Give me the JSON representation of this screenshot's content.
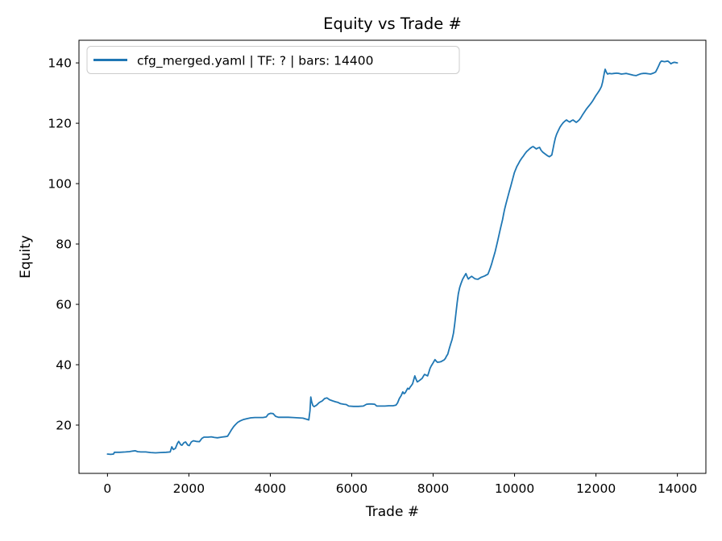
{
  "figure": {
    "title": "Equity vs Trade #",
    "xlabel": "Trade #",
    "ylabel": "Equity"
  },
  "legend": {
    "label": "cfg_merged.yaml | TF: ? | bars: 14400"
  },
  "chart_data": {
    "type": "line",
    "title": "Equity vs Trade #",
    "xlabel": "Trade #",
    "ylabel": "Equity",
    "grid": false,
    "legend_position": "upper left",
    "line_color": "#1f77b4",
    "spine_color": "#000000",
    "xlim": [
      -700,
      14700
    ],
    "ylim": [
      4.0,
      147.5
    ],
    "xticks": [
      0,
      2000,
      4000,
      6000,
      8000,
      10000,
      12000,
      14000
    ],
    "yticks": [
      20,
      40,
      60,
      80,
      100,
      120,
      140
    ],
    "series": [
      {
        "name": "cfg_merged.yaml | TF: ? | bars: 14400",
        "points": [
          [
            0,
            10.4
          ],
          [
            80,
            10.3
          ],
          [
            150,
            10.4
          ],
          [
            170,
            11.0
          ],
          [
            300,
            11.0
          ],
          [
            440,
            11.1
          ],
          [
            540,
            11.2
          ],
          [
            620,
            11.4
          ],
          [
            680,
            11.5
          ],
          [
            740,
            11.2
          ],
          [
            820,
            11.1
          ],
          [
            940,
            11.1
          ],
          [
            1060,
            10.9
          ],
          [
            1180,
            10.8
          ],
          [
            1300,
            10.9
          ],
          [
            1440,
            11.0
          ],
          [
            1540,
            11.1
          ],
          [
            1580,
            12.8
          ],
          [
            1620,
            11.9
          ],
          [
            1670,
            12.3
          ],
          [
            1720,
            14.0
          ],
          [
            1750,
            14.6
          ],
          [
            1800,
            13.5
          ],
          [
            1830,
            13.3
          ],
          [
            1880,
            14.2
          ],
          [
            1920,
            14.4
          ],
          [
            1970,
            13.4
          ],
          [
            2010,
            13.2
          ],
          [
            2060,
            14.4
          ],
          [
            2110,
            14.8
          ],
          [
            2180,
            14.6
          ],
          [
            2260,
            14.5
          ],
          [
            2320,
            15.6
          ],
          [
            2370,
            16.0
          ],
          [
            2470,
            16.0
          ],
          [
            2550,
            16.1
          ],
          [
            2630,
            15.9
          ],
          [
            2700,
            15.8
          ],
          [
            2800,
            16.0
          ],
          [
            2900,
            16.2
          ],
          [
            2950,
            16.3
          ],
          [
            3000,
            17.4
          ],
          [
            3040,
            18.3
          ],
          [
            3100,
            19.5
          ],
          [
            3140,
            20.1
          ],
          [
            3200,
            20.9
          ],
          [
            3260,
            21.4
          ],
          [
            3330,
            21.8
          ],
          [
            3420,
            22.1
          ],
          [
            3520,
            22.4
          ],
          [
            3620,
            22.5
          ],
          [
            3720,
            22.5
          ],
          [
            3820,
            22.5
          ],
          [
            3900,
            22.7
          ],
          [
            3950,
            23.6
          ],
          [
            4010,
            23.9
          ],
          [
            4070,
            23.8
          ],
          [
            4130,
            22.9
          ],
          [
            4200,
            22.6
          ],
          [
            4320,
            22.6
          ],
          [
            4440,
            22.6
          ],
          [
            4560,
            22.5
          ],
          [
            4680,
            22.4
          ],
          [
            4800,
            22.3
          ],
          [
            4900,
            21.9
          ],
          [
            4945,
            21.7
          ],
          [
            4975,
            24.8
          ],
          [
            4995,
            29.3
          ],
          [
            5015,
            27.8
          ],
          [
            5045,
            26.5
          ],
          [
            5075,
            26.1
          ],
          [
            5135,
            26.6
          ],
          [
            5205,
            27.5
          ],
          [
            5275,
            28.0
          ],
          [
            5335,
            28.8
          ],
          [
            5395,
            29.0
          ],
          [
            5455,
            28.4
          ],
          [
            5535,
            28.0
          ],
          [
            5605,
            27.7
          ],
          [
            5665,
            27.5
          ],
          [
            5725,
            27.1
          ],
          [
            5805,
            26.9
          ],
          [
            5865,
            26.8
          ],
          [
            5925,
            26.3
          ],
          [
            6045,
            26.2
          ],
          [
            6165,
            26.2
          ],
          [
            6285,
            26.3
          ],
          [
            6365,
            26.9
          ],
          [
            6425,
            27.0
          ],
          [
            6485,
            27.0
          ],
          [
            6565,
            26.9
          ],
          [
            6615,
            26.3
          ],
          [
            6715,
            26.3
          ],
          [
            6815,
            26.3
          ],
          [
            6915,
            26.4
          ],
          [
            7015,
            26.4
          ],
          [
            7085,
            26.6
          ],
          [
            7125,
            27.3
          ],
          [
            7170,
            28.8
          ],
          [
            7215,
            29.8
          ],
          [
            7255,
            31.0
          ],
          [
            7285,
            30.4
          ],
          [
            7315,
            30.7
          ],
          [
            7375,
            32.2
          ],
          [
            7405,
            31.9
          ],
          [
            7435,
            32.6
          ],
          [
            7465,
            33.1
          ],
          [
            7495,
            33.7
          ],
          [
            7525,
            35.1
          ],
          [
            7550,
            36.3
          ],
          [
            7580,
            35.2
          ],
          [
            7610,
            34.3
          ],
          [
            7645,
            34.6
          ],
          [
            7675,
            34.9
          ],
          [
            7705,
            35.2
          ],
          [
            7730,
            35.5
          ],
          [
            7760,
            36.2
          ],
          [
            7790,
            36.8
          ],
          [
            7835,
            36.5
          ],
          [
            7865,
            36.3
          ],
          [
            7895,
            37.5
          ],
          [
            7925,
            38.8
          ],
          [
            7955,
            39.6
          ],
          [
            7985,
            40.3
          ],
          [
            8015,
            41.0
          ],
          [
            8045,
            41.7
          ],
          [
            8075,
            41.2
          ],
          [
            8105,
            40.8
          ],
          [
            8150,
            40.9
          ],
          [
            8190,
            41.0
          ],
          [
            8230,
            41.3
          ],
          [
            8270,
            41.6
          ],
          [
            8300,
            42.1
          ],
          [
            8330,
            42.9
          ],
          [
            8360,
            43.5
          ],
          [
            8395,
            45.3
          ],
          [
            8430,
            46.8
          ],
          [
            8465,
            48.3
          ],
          [
            8500,
            50.5
          ],
          [
            8530,
            53.5
          ],
          [
            8560,
            57.0
          ],
          [
            8590,
            60.5
          ],
          [
            8620,
            63.5
          ],
          [
            8650,
            65.5
          ],
          [
            8685,
            66.9
          ],
          [
            8725,
            68.3
          ],
          [
            8765,
            69.3
          ],
          [
            8805,
            70.2
          ],
          [
            8835,
            69.2
          ],
          [
            8865,
            68.4
          ],
          [
            8905,
            68.9
          ],
          [
            8945,
            69.3
          ],
          [
            8985,
            68.9
          ],
          [
            9025,
            68.5
          ],
          [
            9065,
            68.4
          ],
          [
            9105,
            68.3
          ],
          [
            9145,
            68.7
          ],
          [
            9185,
            69.0
          ],
          [
            9225,
            69.2
          ],
          [
            9265,
            69.4
          ],
          [
            9305,
            69.7
          ],
          [
            9345,
            70.0
          ],
          [
            9375,
            71.0
          ],
          [
            9405,
            72.1
          ],
          [
            9435,
            73.3
          ],
          [
            9465,
            74.7
          ],
          [
            9495,
            76.1
          ],
          [
            9525,
            77.6
          ],
          [
            9555,
            79.3
          ],
          [
            9585,
            81.0
          ],
          [
            9615,
            82.8
          ],
          [
            9645,
            84.6
          ],
          [
            9675,
            86.3
          ],
          [
            9705,
            88.1
          ],
          [
            9730,
            89.8
          ],
          [
            9755,
            91.5
          ],
          [
            9785,
            93.1
          ],
          [
            9815,
            94.6
          ],
          [
            9845,
            96.1
          ],
          [
            9875,
            97.6
          ],
          [
            9905,
            99.1
          ],
          [
            9935,
            100.6
          ],
          [
            9965,
            102.1
          ],
          [
            9995,
            103.6
          ],
          [
            10025,
            104.6
          ],
          [
            10055,
            105.6
          ],
          [
            10095,
            106.6
          ],
          [
            10135,
            107.6
          ],
          [
            10175,
            108.4
          ],
          [
            10215,
            109.1
          ],
          [
            10255,
            109.9
          ],
          [
            10295,
            110.6
          ],
          [
            10335,
            111.1
          ],
          [
            10375,
            111.6
          ],
          [
            10415,
            112.0
          ],
          [
            10455,
            112.3
          ],
          [
            10495,
            111.9
          ],
          [
            10535,
            111.5
          ],
          [
            10575,
            111.8
          ],
          [
            10615,
            112.0
          ],
          [
            10655,
            111.0
          ],
          [
            10695,
            110.4
          ],
          [
            10735,
            110.0
          ],
          [
            10775,
            109.6
          ],
          [
            10815,
            109.2
          ],
          [
            10855,
            108.9
          ],
          [
            10885,
            109.2
          ],
          [
            10915,
            109.5
          ],
          [
            10945,
            111.5
          ],
          [
            10975,
            113.5
          ],
          [
            11005,
            115.2
          ],
          [
            11035,
            116.4
          ],
          [
            11075,
            117.6
          ],
          [
            11115,
            118.7
          ],
          [
            11155,
            119.5
          ],
          [
            11195,
            120.2
          ],
          [
            11235,
            120.7
          ],
          [
            11275,
            121.1
          ],
          [
            11315,
            120.7
          ],
          [
            11355,
            120.4
          ],
          [
            11395,
            120.8
          ],
          [
            11435,
            121.1
          ],
          [
            11475,
            120.7
          ],
          [
            11515,
            120.3
          ],
          [
            11555,
            120.7
          ],
          [
            11595,
            121.2
          ],
          [
            11635,
            122.0
          ],
          [
            11675,
            122.9
          ],
          [
            11715,
            123.7
          ],
          [
            11755,
            124.5
          ],
          [
            11795,
            125.2
          ],
          [
            11835,
            125.9
          ],
          [
            11875,
            126.6
          ],
          [
            11915,
            127.3
          ],
          [
            11955,
            128.2
          ],
          [
            11995,
            129.1
          ],
          [
            12035,
            129.9
          ],
          [
            12075,
            130.7
          ],
          [
            12105,
            131.4
          ],
          [
            12135,
            132.2
          ],
          [
            12165,
            133.7
          ],
          [
            12190,
            135.6
          ],
          [
            12210,
            137.0
          ],
          [
            12225,
            137.9
          ],
          [
            12255,
            136.9
          ],
          [
            12285,
            136.3
          ],
          [
            12325,
            136.5
          ],
          [
            12385,
            136.4
          ],
          [
            12445,
            136.5
          ],
          [
            12505,
            136.6
          ],
          [
            12565,
            136.5
          ],
          [
            12625,
            136.3
          ],
          [
            12685,
            136.4
          ],
          [
            12745,
            136.5
          ],
          [
            12805,
            136.3
          ],
          [
            12865,
            136.1
          ],
          [
            12925,
            135.9
          ],
          [
            12985,
            135.8
          ],
          [
            13045,
            136.1
          ],
          [
            13105,
            136.4
          ],
          [
            13165,
            136.5
          ],
          [
            13225,
            136.5
          ],
          [
            13285,
            136.4
          ],
          [
            13345,
            136.3
          ],
          [
            13405,
            136.6
          ],
          [
            13465,
            137.0
          ],
          [
            13505,
            138.0
          ],
          [
            13545,
            139.2
          ],
          [
            13575,
            140.1
          ],
          [
            13605,
            140.6
          ],
          [
            13645,
            140.5
          ],
          [
            13685,
            140.4
          ],
          [
            13725,
            140.5
          ],
          [
            13765,
            140.6
          ],
          [
            13805,
            140.2
          ],
          [
            13840,
            139.7
          ],
          [
            13880,
            140.0
          ],
          [
            13920,
            140.2
          ],
          [
            13960,
            140.1
          ],
          [
            14000,
            140.0
          ]
        ]
      }
    ]
  }
}
